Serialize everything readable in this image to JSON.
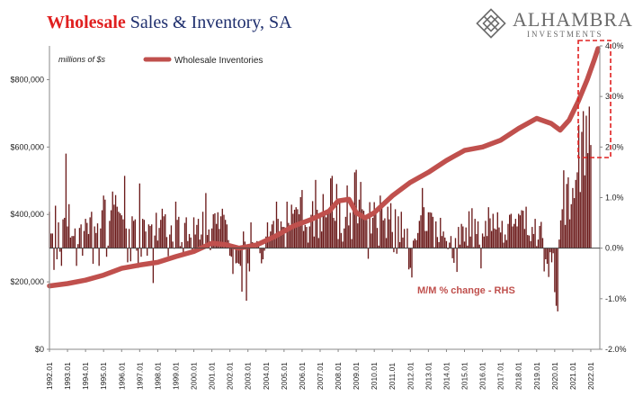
{
  "title": {
    "part1": "Wholesale",
    "part2": " Sales & Inventory, SA"
  },
  "logo": {
    "name": "ALHAMBRA",
    "sub": "INVESTMENTS",
    "icon": "alhambra-diamond-icon"
  },
  "colors": {
    "inventory_line": "#c0504d",
    "mm_bars": "#6b1a1a",
    "highlight_box": "#e02020",
    "title_red": "#e02020",
    "title_navy": "#1f2f6e"
  },
  "chart_data": {
    "type": "bar+line",
    "units_left": "millions of $s",
    "legend": "Wholesale Inventories",
    "annotation": "M/M % change - RHS",
    "left_axis": {
      "min": 0,
      "max": 900000,
      "ticks": [
        "$0",
        "$200,000",
        "$400,000",
        "$600,000",
        "$800,000"
      ]
    },
    "right_axis": {
      "min": -2.0,
      "max": 4.0,
      "ticks": [
        "-2.0%",
        "-1.0%",
        "0.0%",
        "1.0%",
        "2.0%",
        "3.0%",
        "4.0%"
      ]
    },
    "x_labels": [
      "1992.01",
      "1993.01",
      "1994.01",
      "1995.01",
      "1996.01",
      "1997.01",
      "1998.01",
      "1999.01",
      "2000.01",
      "2001.01",
      "2002.01",
      "2003.01",
      "2004.01",
      "2005.01",
      "2006.01",
      "2007.01",
      "2008.01",
      "2009.01",
      "2010.01",
      "2011.01",
      "2012.01",
      "2013.01",
      "2014.01",
      "2015.01",
      "2016.01",
      "2017.01",
      "2018.01",
      "2019.01",
      "2020.01",
      "2021.01",
      "2022.01"
    ],
    "series": [
      {
        "name": "Wholesale Inventories",
        "type": "line",
        "axis": "left",
        "x": [
          1992.0,
          1993.0,
          1994.0,
          1995.0,
          1996.0,
          1997.0,
          1998.0,
          1999.0,
          2000.0,
          2001.0,
          2001.8,
          2002.5,
          2003.5,
          2004.5,
          2005.5,
          2006.5,
          2007.5,
          2008.0,
          2008.6,
          2009.0,
          2009.5,
          2010.0,
          2011.0,
          2012.0,
          2013.0,
          2014.0,
          2015.0,
          2016.0,
          2017.0,
          2018.0,
          2019.0,
          2019.8,
          2020.3,
          2020.8,
          2021.3,
          2021.8,
          2022.2,
          2022.4
        ],
        "y": [
          188000,
          195000,
          205000,
          220000,
          240000,
          250000,
          258000,
          275000,
          290000,
          315000,
          310000,
          300000,
          310000,
          335000,
          365000,
          385000,
          410000,
          440000,
          445000,
          405000,
          390000,
          405000,
          455000,
          495000,
          525000,
          560000,
          590000,
          600000,
          620000,
          655000,
          685000,
          670000,
          650000,
          680000,
          735000,
          800000,
          860000,
          892000
        ]
      },
      {
        "name": "M/M % change",
        "type": "bar",
        "axis": "right",
        "start": 1992.0,
        "step": 0.0833333,
        "values": [
          0.72,
          0.29,
          0.29,
          -0.43,
          0.84,
          -0.22,
          0.51,
          -0.07,
          -0.35,
          0.57,
          0.6,
          1.87,
          0.43,
          0.87,
          0.21,
          0.24,
          0.24,
          0.39,
          -0.35,
          0.08,
          0.4,
          0.47,
          -0.15,
          0.34,
          0.58,
          0.5,
          0.28,
          0.61,
          0.72,
          -0.31,
          0.43,
          0.3,
          0.49,
          -0.35,
          0.39,
          0.75,
          1.04,
          0.96,
          -0.17,
          0.05,
          0.54,
          0.75,
          1.12,
          0.86,
          1.05,
          0.82,
          0.72,
          0.69,
          0.65,
          0.57,
          1.43,
          0.39,
          -0.28,
          0.38,
          -0.26,
          0.63,
          0.54,
          0.57,
          -0.05,
          -0.39,
          1.28,
          -0.17,
          0.58,
          0.56,
          0.33,
          -0.15,
          0.47,
          0.44,
          0.47,
          -0.69,
          0.25,
          0.7,
          0.15,
          0.4,
          0.56,
          0.78,
          0.63,
          0.67,
          0.22,
          -0.16,
          0.27,
          0.45,
          0.13,
          -0.01,
          0.92,
          0.56,
          0.62,
          0.04,
          0.12,
          -0.09,
          0.5,
          0.61,
          0.14,
          0.28,
          0.21,
          -0.05,
          0.61,
          0.27,
          0.46,
          0.58,
          0.17,
          0.27,
          0.72,
          0.04,
          1.09,
          0.26,
          0.37,
          -0.04,
          0.39,
          0.67,
          0.69,
          0.48,
          0.71,
          0.38,
          0.63,
          0.78,
          0.66,
          0.56,
          0.47,
          0.16,
          -0.15,
          -0.17,
          -0.51,
          -0.01,
          -0.3,
          -0.29,
          -0.31,
          -0.35,
          -0.86,
          0.33,
          0.13,
          -1.04,
          -0.3,
          -0.46,
          0.51,
          0.12,
          0.09,
          0.01,
          0.14,
          0.12,
          -0.1,
          -0.3,
          -0.22,
          -0.05,
          0.23,
          0.51,
          0.2,
          0.33,
          0.47,
          0.54,
          0.28,
          0.92,
          0.58,
          0.27,
          0.53,
          0.42,
          0.42,
          0.02,
          0.92,
          0.5,
          0.36,
          0.86,
          0.68,
          0.76,
          0.81,
          0.77,
          0.67,
          1.01,
          1.15,
          0.34,
          0.46,
          0.42,
          0.11,
          0.43,
          0.66,
          0.93,
          0.23,
          1.35,
          0.76,
          0.2,
          0.69,
          0.33,
          1.07,
          0.71,
          0.61,
          0.7,
          0.69,
          1.38,
          1.43,
          0.6,
          0.54,
          1.27,
          0.18,
          0.94,
          0.3,
          0.13,
          0.39,
          0.62,
          1.24,
          0.45,
          0.7,
          0.18,
          0.89,
          1.5,
          1.55,
          0.49,
          0.96,
          1.31,
          0.77,
          0.74,
          0.62,
          0.56,
          -0.21,
          0.91,
          0.29,
          0.6,
          0.91,
          0.68,
          0.4,
          0.05,
          1.04,
          0.85,
          0.55,
          0.59,
          0.2,
          0.82,
          0.57,
          0.89,
          0.32,
          -0.08,
          0.77,
          -0.11,
          0.63,
          0.12,
          0.72,
          0.21,
          0.38,
          0.01,
          0.39,
          -0.42,
          -0.39,
          -0.58,
          0.15,
          0.19,
          0.16,
          0.3,
          0.54,
          0.65,
          1.19,
          0.81,
          0.34,
          0.34,
          0.71,
          0.71,
          0.7,
          0.62,
          0.02,
          0.53,
          0.22,
          0.12,
          0.6,
          0.24,
          0.33,
          0.21,
          0.14,
          -0.02,
          0.11,
          0.24,
          -0.2,
          -0.29,
          0.2,
          -0.47,
          0.42,
          0.07,
          0.48,
          0.43,
          0.13,
          0.41,
          0.05,
          0.73,
          0.23,
          0.79,
          0.02,
          0.58,
          0.28,
          0.53,
          0.07,
          -0.4,
          0.29,
          0.23,
          0.54,
          0.24,
          0.81,
          0.59,
          0.34,
          0.68,
          0.39,
          0.37,
          0.71,
          0.41,
          0.31,
          0.54,
          0.11,
          0.27,
          0.16,
          0.48,
          0.66,
          0.68,
          0.43,
          0.48,
          0.58,
          0.43,
          0.68,
          0.65,
          0.75,
          0.74,
          0.38,
          0.82,
          0.26,
          0.25,
          0.14,
          0.42,
          0.28,
          0.58,
          0.04,
          0.17,
          0.44,
          0.52,
          0.2,
          -0.46,
          -0.22,
          -0.31,
          -0.57,
          -0.08,
          -0.28,
          -0.1,
          -0.87,
          -1.14,
          -1.25,
          0.17,
          0.55,
          0.77,
          1.54,
          0.46,
          1.27,
          1.4,
          0.57,
          0.87,
          1.19,
          0.99,
          1.35,
          1.5,
          2.44,
          1.11,
          2.3,
          2.71,
          1.44,
          2.62,
          1.88,
          2.8,
          2.04
        ]
      }
    ]
  }
}
